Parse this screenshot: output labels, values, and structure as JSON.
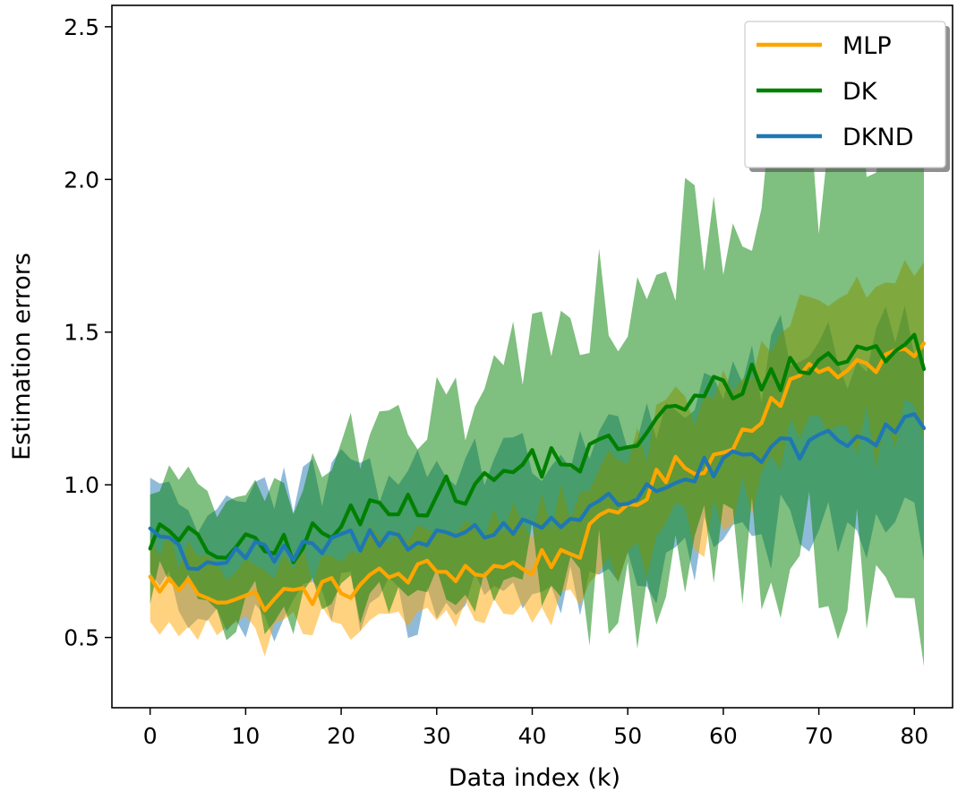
{
  "chart_data": {
    "type": "line",
    "title": "",
    "xlabel": "Data index (k)",
    "ylabel": "Estimation errors",
    "xlim": [
      -4,
      84
    ],
    "ylim": [
      0.27,
      2.57
    ],
    "xticks": [
      0,
      10,
      20,
      30,
      40,
      50,
      60,
      70,
      80
    ],
    "yticks": [
      0.5,
      1.0,
      1.5,
      2.0,
      2.5
    ],
    "xtick_labels": [
      "0",
      "10",
      "20",
      "30",
      "40",
      "50",
      "60",
      "70",
      "80"
    ],
    "ytick_labels": [
      "0.5",
      "1.0",
      "1.5",
      "2.0",
      "2.5"
    ],
    "grid": false,
    "legend_position": "top-right",
    "series": [
      {
        "name": "MLP",
        "color": "#FFA500",
        "band_color": "#FFA500",
        "key": [
          [
            0,
            0.68
          ],
          [
            5,
            0.66
          ],
          [
            10,
            0.62
          ],
          [
            15,
            0.64
          ],
          [
            20,
            0.66
          ],
          [
            25,
            0.7
          ],
          [
            30,
            0.72
          ],
          [
            35,
            0.72
          ],
          [
            40,
            0.74
          ],
          [
            45,
            0.8
          ],
          [
            50,
            0.94
          ],
          [
            55,
            1.05
          ],
          [
            60,
            1.1
          ],
          [
            65,
            1.28
          ],
          [
            70,
            1.38
          ],
          [
            75,
            1.4
          ],
          [
            80,
            1.44
          ],
          [
            81,
            1.42
          ]
        ],
        "band": [
          [
            0,
            0.12
          ],
          [
            10,
            0.12
          ],
          [
            20,
            0.12
          ],
          [
            30,
            0.14
          ],
          [
            40,
            0.16
          ],
          [
            50,
            0.2
          ],
          [
            60,
            0.22
          ],
          [
            70,
            0.24
          ],
          [
            81,
            0.26
          ]
        ]
      },
      {
        "name": "DK",
        "color": "#008000",
        "band_color": "#008000",
        "key": [
          [
            0,
            0.84
          ],
          [
            5,
            0.8
          ],
          [
            10,
            0.78
          ],
          [
            15,
            0.8
          ],
          [
            20,
            0.86
          ],
          [
            25,
            0.95
          ],
          [
            30,
            0.96
          ],
          [
            35,
            1.0
          ],
          [
            40,
            1.08
          ],
          [
            45,
            1.08
          ],
          [
            50,
            1.14
          ],
          [
            55,
            1.24
          ],
          [
            60,
            1.32
          ],
          [
            65,
            1.36
          ],
          [
            70,
            1.4
          ],
          [
            75,
            1.44
          ],
          [
            80,
            1.45
          ],
          [
            81,
            1.42
          ]
        ],
        "band": [
          [
            0,
            0.18
          ],
          [
            10,
            0.22
          ],
          [
            20,
            0.26
          ],
          [
            30,
            0.3
          ],
          [
            40,
            0.42
          ],
          [
            45,
            0.5
          ],
          [
            50,
            0.56
          ],
          [
            60,
            0.62
          ],
          [
            70,
            0.7
          ],
          [
            81,
            0.78
          ]
        ]
      },
      {
        "name": "DKND",
        "color": "#1F77B4",
        "band_color": "#1F77B4",
        "key": [
          [
            0,
            0.86
          ],
          [
            5,
            0.74
          ],
          [
            10,
            0.78
          ],
          [
            15,
            0.76
          ],
          [
            20,
            0.82
          ],
          [
            25,
            0.82
          ],
          [
            30,
            0.84
          ],
          [
            35,
            0.84
          ],
          [
            40,
            0.88
          ],
          [
            45,
            0.9
          ],
          [
            50,
            0.96
          ],
          [
            55,
            1.02
          ],
          [
            60,
            1.06
          ],
          [
            65,
            1.1
          ],
          [
            70,
            1.14
          ],
          [
            75,
            1.14
          ],
          [
            80,
            1.24
          ],
          [
            81,
            1.2
          ]
        ],
        "band": [
          [
            0,
            0.18
          ],
          [
            10,
            0.2
          ],
          [
            20,
            0.22
          ],
          [
            30,
            0.24
          ],
          [
            40,
            0.26
          ],
          [
            50,
            0.28
          ],
          [
            60,
            0.3
          ],
          [
            70,
            0.32
          ],
          [
            81,
            0.34
          ]
        ]
      }
    ]
  }
}
